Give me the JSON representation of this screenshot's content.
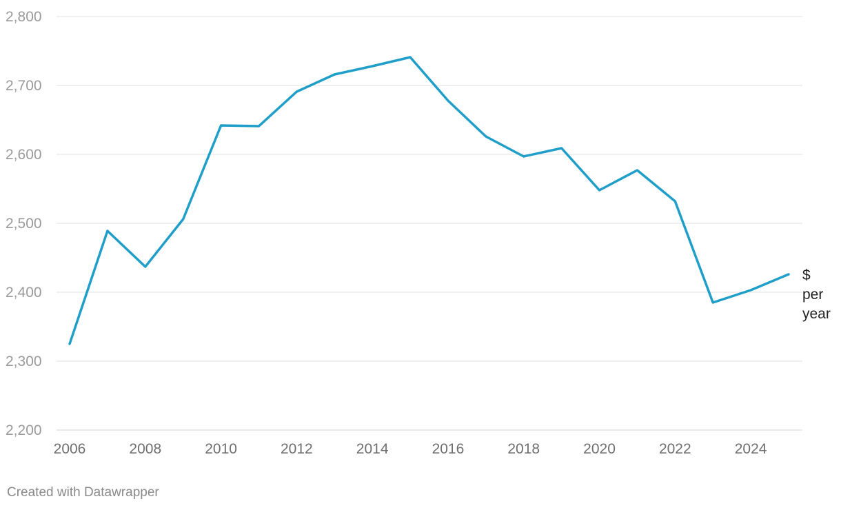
{
  "chart_data": {
    "type": "line",
    "x": [
      2006,
      2007,
      2008,
      2009,
      2010,
      2011,
      2012,
      2013,
      2014,
      2015,
      2016,
      2017,
      2018,
      2019,
      2020,
      2021,
      2022,
      2023,
      2024,
      2025
    ],
    "series": [
      {
        "values": [
          2325,
          2489,
          2437,
          2506,
          2642,
          2641,
          2691,
          2716,
          2728,
          2741,
          2678,
          2626,
          2597,
          2609,
          2548,
          2577,
          2532,
          2385,
          2403,
          2426
        ],
        "end_label": [
          "$",
          "per",
          "year"
        ],
        "color": "#1f9ec9"
      }
    ],
    "xticks": [
      "2006",
      "2008",
      "2010",
      "2012",
      "2014",
      "2016",
      "2018",
      "2020",
      "2022",
      "2024"
    ],
    "yticks": [
      "2,200",
      "2,300",
      "2,400",
      "2,500",
      "2,600",
      "2,700",
      "2,800"
    ],
    "ylim": [
      2200,
      2800
    ],
    "xlim": [
      2006,
      2025
    ],
    "grid": true,
    "legend": "none"
  },
  "footer": {
    "credit": "Created with Datawrapper"
  }
}
